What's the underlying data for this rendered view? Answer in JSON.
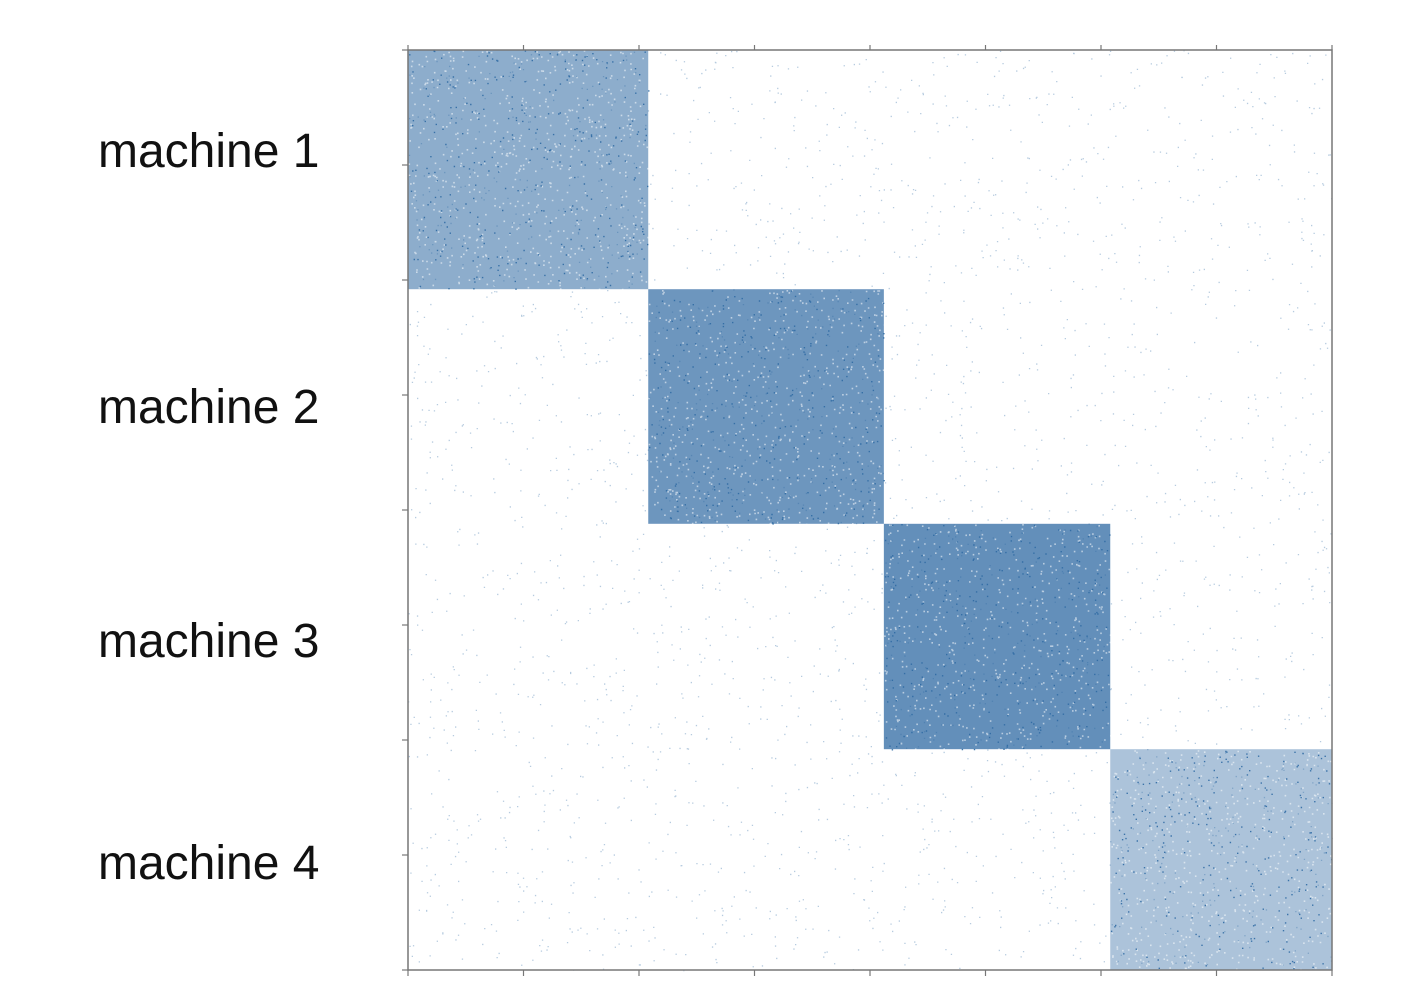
{
  "chart_data": {
    "type": "heatmap",
    "title": "",
    "xlabel": "",
    "ylabel": "",
    "row_labels": [
      "machine 1",
      "machine 2",
      "machine 3",
      "machine 4"
    ],
    "blocks": [
      {
        "label": "machine 1",
        "start": 0,
        "end": 0.26,
        "density": 0.55
      },
      {
        "label": "machine 2",
        "start": 0.26,
        "end": 0.515,
        "density": 0.7
      },
      {
        "label": "machine 3",
        "start": 0.515,
        "end": 0.76,
        "density": 0.75
      },
      {
        "label": "machine 4",
        "start": 0.76,
        "end": 1.0,
        "density": 0.4
      }
    ],
    "off_diagonal_density": 0.02,
    "grid": false,
    "colors": {
      "marks": "#2f6aa3",
      "axis": "#777777",
      "text": "#111111"
    }
  }
}
